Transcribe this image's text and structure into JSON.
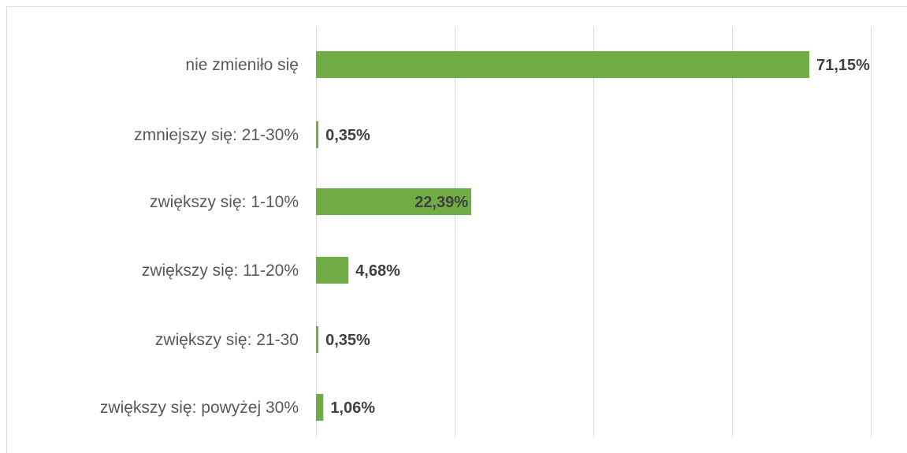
{
  "chart_data": {
    "type": "bar",
    "orientation": "horizontal",
    "categories": [
      "nie zmieniło się",
      "zmniejszy się: 21-30%",
      "zwiększy się: 1-10%",
      "zwiększy się: 11-20%",
      "zwiększy się: 21-30",
      "zwiększy się: powyżej 30%"
    ],
    "values": [
      71.15,
      0.35,
      22.39,
      4.68,
      0.35,
      1.06
    ],
    "value_labels": [
      "71,15%",
      "0,35%",
      "22,39%",
      "4,68%",
      "0,35%",
      "1,06%"
    ],
    "title": "",
    "xlabel": "",
    "ylabel": "",
    "xlim": [
      0,
      80
    ],
    "grid": true,
    "legend": "none",
    "bar_color": "#70ad47",
    "gridline_color": "#d9d9d9"
  }
}
